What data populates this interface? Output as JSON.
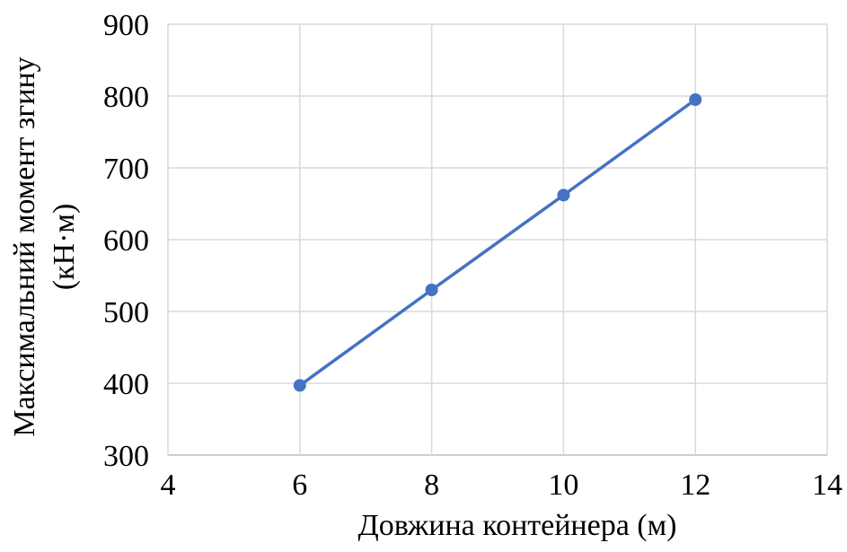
{
  "chart_data": {
    "type": "line",
    "title": "",
    "xlabel": "Довжина контейнера (м)",
    "ylabel_lines": [
      "Максимальний момент згину",
      "(кН·м)"
    ],
    "x": [
      6,
      8,
      10,
      12
    ],
    "series": [
      {
        "values": [
          397,
          530,
          662,
          795
        ]
      }
    ],
    "xlim": [
      4,
      14
    ],
    "ylim": [
      300,
      900
    ],
    "xticks": [
      "4",
      "6",
      "8",
      "10",
      "12",
      "14"
    ],
    "yticks": [
      "300",
      "400",
      "500",
      "600",
      "700",
      "800",
      "900"
    ],
    "grid": true,
    "legend": "none",
    "colors": {
      "series": "#4472c4",
      "grid": "#d9d9d9",
      "axis": "#bfbfbf"
    }
  }
}
